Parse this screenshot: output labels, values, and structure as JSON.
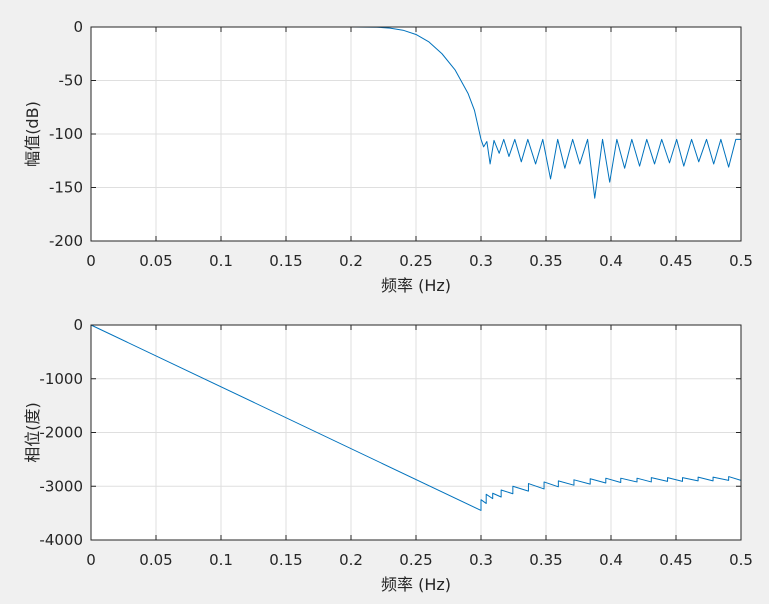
{
  "chart_data": [
    {
      "type": "line",
      "title": "",
      "xlabel": "频率 (Hz)",
      "ylabel": "幅值(dB)",
      "xlim": [
        0,
        0.5
      ],
      "ylim": [
        -200,
        0
      ],
      "xticks": [
        0,
        0.05,
        0.1,
        0.15,
        0.2,
        0.25,
        0.3,
        0.35,
        0.4,
        0.45,
        0.5
      ],
      "xtick_labels": [
        "0",
        "0.05",
        "0.1",
        "0.15",
        "0.2",
        "0.25",
        "0.3",
        "0.35",
        "0.4",
        "0.45",
        "0.5"
      ],
      "yticks": [
        0,
        -50,
        -100,
        -150,
        -200
      ],
      "ytick_labels": [
        "0",
        "-50",
        "-100",
        "-150",
        "-200"
      ],
      "grid": true,
      "line_color": "#0072bd",
      "series": [
        {
          "x": [
            0,
            0.2,
            0.22,
            0.23,
            0.24,
            0.25,
            0.26,
            0.27,
            0.28,
            0.29,
            0.295,
            0.3,
            0.302,
            0.3045,
            0.307,
            0.31,
            0.314,
            0.3175,
            0.3215,
            0.326,
            0.331,
            0.336,
            0.342,
            0.3475,
            0.3535,
            0.359,
            0.3645,
            0.3705,
            0.376,
            0.382,
            0.3875,
            0.3935,
            0.399,
            0.4045,
            0.4105,
            0.416,
            0.422,
            0.4275,
            0.4335,
            0.439,
            0.445,
            0.4505,
            0.456,
            0.462,
            0.4675,
            0.4735,
            0.479,
            0.4845,
            0.4905,
            0.496,
            0.5
          ],
          "y": [
            0,
            0,
            -0.2,
            -1,
            -3,
            -7,
            -14,
            -25,
            -40,
            -62,
            -78,
            -105,
            -112,
            -107,
            -128,
            -106,
            -118,
            -105,
            -121,
            -105,
            -126,
            -105,
            -128,
            -105,
            -142,
            -105,
            -132,
            -105,
            -128,
            -105,
            -160,
            -105,
            -145,
            -105,
            -132,
            -105,
            -130,
            -105,
            -128,
            -105,
            -127,
            -105,
            -130,
            -105,
            -126,
            -105,
            -128,
            -105,
            -131,
            -105,
            -105
          ]
        }
      ]
    },
    {
      "type": "line",
      "title": "",
      "xlabel": "频率 (Hz)",
      "ylabel": "相位(度)",
      "xlim": [
        0,
        0.5
      ],
      "ylim": [
        -4000,
        0
      ],
      "xticks": [
        0,
        0.05,
        0.1,
        0.15,
        0.2,
        0.25,
        0.3,
        0.35,
        0.4,
        0.45,
        0.5
      ],
      "xtick_labels": [
        "0",
        "0.05",
        "0.1",
        "0.15",
        "0.2",
        "0.25",
        "0.3",
        "0.35",
        "0.4",
        "0.45",
        "0.5"
      ],
      "yticks": [
        0,
        -1000,
        -2000,
        -3000,
        -4000
      ],
      "ytick_labels": [
        "0",
        "-1000",
        "-2000",
        "-3000",
        "-4000"
      ],
      "grid": true,
      "line_color": "#0072bd",
      "series": [
        {
          "x": [
            0,
            0.3,
            0.3,
            0.304,
            0.304,
            0.309,
            0.309,
            0.3155,
            0.3155,
            0.3245,
            0.3245,
            0.3365,
            0.3365,
            0.3485,
            0.3485,
            0.3595,
            0.3595,
            0.3715,
            0.3715,
            0.384,
            0.384,
            0.396,
            0.396,
            0.4075,
            0.4075,
            0.42,
            0.42,
            0.431,
            0.431,
            0.4435,
            0.4435,
            0.455,
            0.455,
            0.467,
            0.467,
            0.4785,
            0.4785,
            0.4905,
            0.4905,
            0.5
          ],
          "y": [
            0,
            -3450,
            -3250,
            -3320,
            -3150,
            -3230,
            -3130,
            -3200,
            -3070,
            -3140,
            -3000,
            -3090,
            -2950,
            -3050,
            -2920,
            -3010,
            -2900,
            -2980,
            -2880,
            -2960,
            -2860,
            -2940,
            -2850,
            -2930,
            -2850,
            -2920,
            -2850,
            -2920,
            -2840,
            -2910,
            -2840,
            -2910,
            -2840,
            -2900,
            -2830,
            -2900,
            -2830,
            -2890,
            -2820,
            -2890
          ]
        }
      ]
    }
  ]
}
